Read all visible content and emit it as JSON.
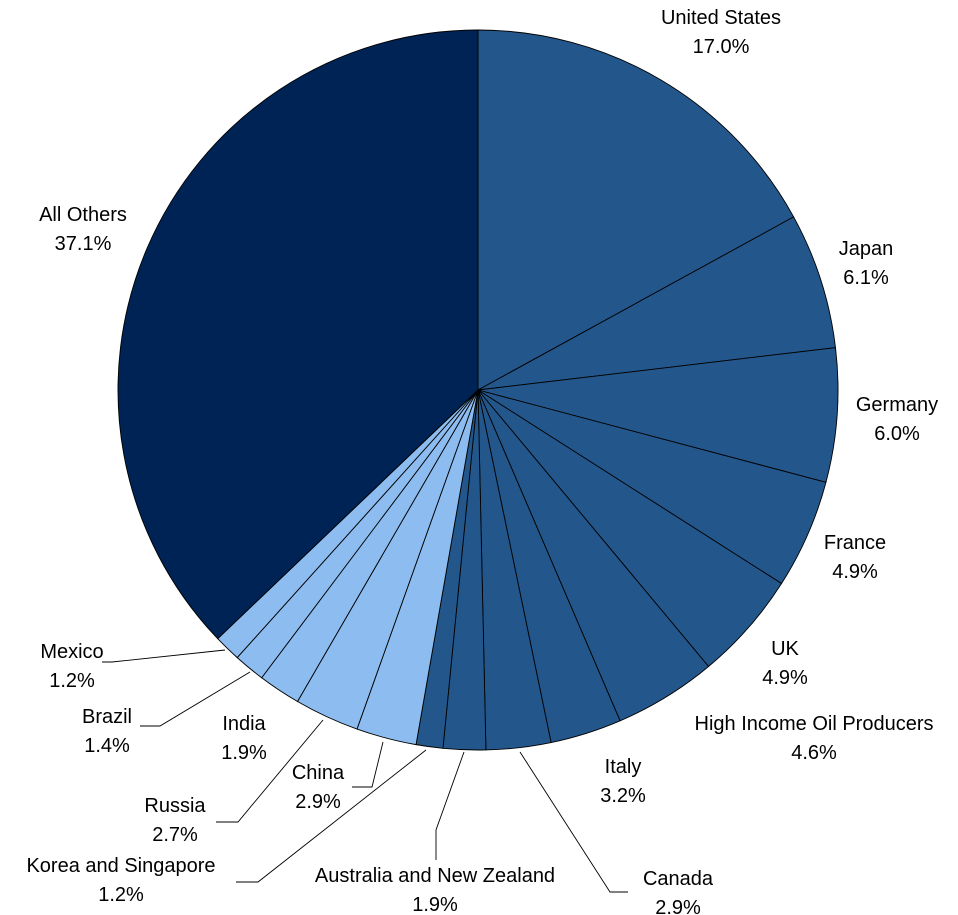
{
  "chart_data": {
    "type": "pie",
    "title": "",
    "categories": [
      "United States",
      "Japan",
      "Germany",
      "France",
      "UK",
      "High Income Oil Producers",
      "Italy",
      "Canada",
      "Australia and New Zealand",
      "Korea and Singapore",
      "Russia",
      "China",
      "India",
      "Brazil",
      "Mexico",
      "All Others"
    ],
    "values": [
      17.0,
      6.1,
      6.0,
      4.9,
      4.9,
      4.6,
      3.2,
      2.9,
      1.9,
      1.2,
      2.7,
      2.9,
      1.9,
      1.4,
      1.2,
      37.1
    ],
    "value_labels": [
      "17.0%",
      "6.1%",
      "6.0%",
      "4.9%",
      "4.9%",
      "4.6%",
      "3.2%",
      "2.9%",
      "1.9%",
      "1.2%",
      "2.7%",
      "2.9%",
      "1.9%",
      "1.4%",
      "1.2%",
      "37.1%"
    ],
    "colors": [
      "#23578c",
      "#23578c",
      "#23578c",
      "#23578c",
      "#23578c",
      "#23578c",
      "#23578c",
      "#23578c",
      "#23578c",
      "#23578c",
      "#8cbcf0",
      "#8cbcf0",
      "#8cbcf0",
      "#8cbcf0",
      "#8cbcf0",
      "#002356"
    ],
    "start_angle": "12 o'clock",
    "direction": "clockwise",
    "legend": "none",
    "labels": "outside with leader lines"
  }
}
